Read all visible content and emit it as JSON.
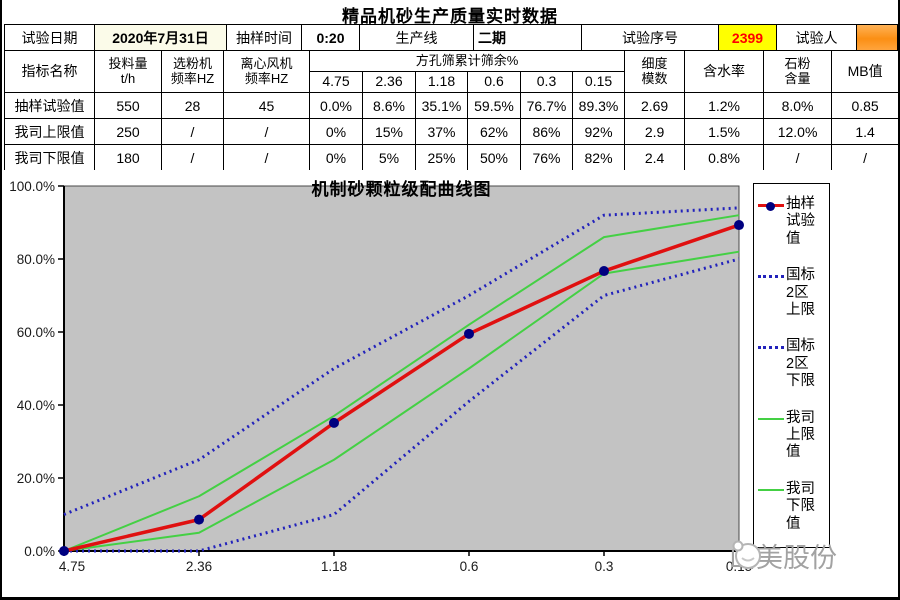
{
  "title": "精品机砂生产质量实时数据",
  "info": {
    "test_date_label": "试验日期",
    "test_date_value": "2020年7月31日",
    "sample_time_label": "抽样时间",
    "sample_time_value": "0:20",
    "production_line_label": "生产线",
    "production_line_value": "二期",
    "test_no_label": "试验序号",
    "test_no_value": "2399",
    "tester_label": "试验人",
    "tester_value": "",
    "test_no_bg": "#ffff00",
    "test_no_color": "#ff0000",
    "tester_bg": "#fb9a2e"
  },
  "table": {
    "col_indicator": "指标名称",
    "col_feed": "投料量\nt/h",
    "col_classifier": "选粉机\n频率HZ",
    "col_fan": "离心风机\n频率HZ",
    "col_sieve_group": "方孔筛累计筛余%",
    "sieve_sizes": [
      "4.75",
      "2.36",
      "1.18",
      "0.6",
      "0.3",
      "0.15"
    ],
    "col_fineness": "细度\n模数",
    "col_moisture": "含水率",
    "col_stone_powder": "石粉\n含量",
    "col_mb": "MB值",
    "rows": [
      {
        "name": "抽样试验值",
        "bold": true,
        "cells": [
          "550",
          "28",
          "45",
          "0.0%",
          "8.6%",
          "35.1%",
          "59.5%",
          "76.7%",
          "89.3%",
          "2.69",
          "1.2%",
          "8.0%",
          "0.85"
        ]
      },
      {
        "name": "我司上限值",
        "bold": false,
        "cells": [
          "250",
          "/",
          "/",
          "0%",
          "15%",
          "37%",
          "62%",
          "86%",
          "92%",
          "2.9",
          "1.5%",
          "12.0%",
          "1.4"
        ]
      },
      {
        "name": "我司下限值",
        "bold": false,
        "cells": [
          "180",
          "/",
          "/",
          "0%",
          "5%",
          "25%",
          "50%",
          "76%",
          "82%",
          "2.4",
          "0.8%",
          "/",
          "/"
        ]
      }
    ]
  },
  "chart_data": {
    "type": "line",
    "title": "机制砂颗粒级配曲线图",
    "x_categories": [
      "4.75",
      "2.36",
      "1.18",
      "0.6",
      "0.3",
      "0.15"
    ],
    "y_ticks": [
      "0.0%",
      "20.0%",
      "40.0%",
      "60.0%",
      "80.0%",
      "100.0%"
    ],
    "ylim": [
      0,
      100
    ],
    "grid": false,
    "plot_bg": "#c3c3c3",
    "legend_position": "right",
    "series": [
      {
        "name": "抽样试验值",
        "legend_label": "抽样\n试验\n值",
        "values": [
          0.0,
          8.6,
          35.1,
          59.5,
          76.7,
          89.3
        ],
        "color": "#e01010",
        "style": "solid",
        "width": 3.5,
        "marker": "circle",
        "marker_color": "#000080"
      },
      {
        "name": "国标2区上限",
        "legend_label": "国标\n2区\n上限",
        "values": [
          10,
          25,
          50,
          70,
          92,
          94
        ],
        "color": "#2222bb",
        "style": "dotted",
        "width": 3
      },
      {
        "name": "国标2区下限",
        "legend_label": "国标\n2区\n下限",
        "values": [
          0,
          0,
          10,
          41,
          70,
          80
        ],
        "color": "#2222bb",
        "style": "dotted",
        "width": 3
      },
      {
        "name": "我司上限值",
        "legend_label": "我司\n上限\n值",
        "values": [
          0,
          15,
          37,
          62,
          86,
          92
        ],
        "color": "#44d044",
        "style": "solid",
        "width": 2
      },
      {
        "name": "我司下限值",
        "legend_label": "我司\n下限\n值",
        "values": [
          0,
          5,
          25,
          50,
          76,
          82
        ],
        "color": "#44d044",
        "style": "solid",
        "width": 2
      }
    ]
  },
  "watermark": {
    "text": "山美股份"
  }
}
